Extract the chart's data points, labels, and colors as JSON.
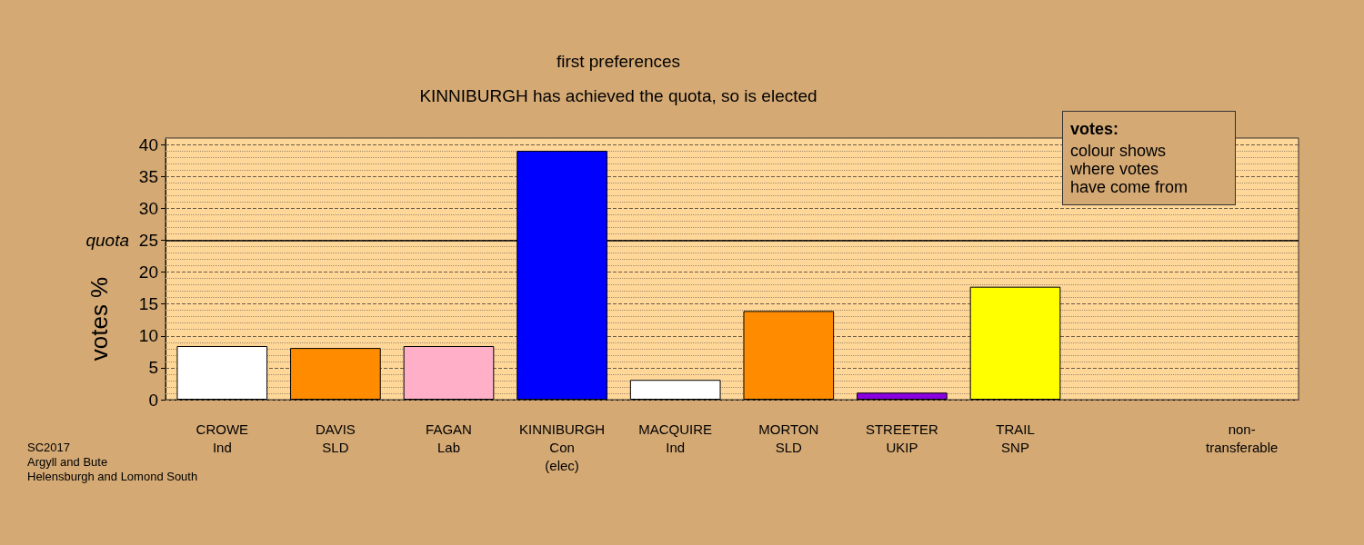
{
  "chart_data": {
    "type": "bar",
    "title": "first preferences",
    "subtitle": "KINNIBURGH has achieved the quota, so is elected",
    "ylabel": "votes %",
    "categories": [
      "CROWE\nInd",
      "DAVIS\nSLD",
      "FAGAN\nLab",
      "KINNIBURGH\nCon\n(elec)",
      "MACQUIRE\nInd",
      "MORTON\nSLD",
      "STREETER\nUKIP",
      "TRAIL\nSNP",
      null,
      "non-\ntransferable"
    ],
    "values": [
      8.4,
      8.1,
      8.4,
      39.0,
      3.1,
      13.9,
      1.1,
      17.7,
      null,
      null
    ],
    "colors": [
      "#ffffff",
      "#ff8c00",
      "#ffb0c8",
      "#0000ff",
      "#ffffff",
      "#ff8c00",
      "#8b00e0",
      "#ffff00",
      "#ffffff",
      "#ffffff"
    ],
    "ylim": [
      0,
      41
    ],
    "yticks": [
      0,
      {
        "value": 1,
        "label": null
      },
      {
        "value": 2,
        "label": null
      },
      {
        "value": 3,
        "label": null
      },
      {
        "value": 4,
        "label": null
      },
      5,
      {
        "value": 6,
        "label": null
      },
      {
        "value": 7,
        "label": null
      },
      {
        "value": 8,
        "label": null
      },
      {
        "value": 9,
        "label": null
      },
      10,
      {
        "value": 11,
        "label": null
      },
      {
        "value": 12,
        "label": null
      },
      {
        "value": 13,
        "label": null
      },
      {
        "value": 14,
        "label": null
      },
      15,
      {
        "value": 16,
        "label": null
      },
      {
        "value": 17,
        "label": null
      },
      {
        "value": 18,
        "label": null
      },
      {
        "value": 19,
        "label": null
      },
      20,
      {
        "value": 21,
        "label": null
      },
      {
        "value": 22,
        "label": null
      },
      {
        "value": 23,
        "label": null
      },
      {
        "value": 24,
        "label": null
      },
      25,
      {
        "value": 26,
        "label": null
      },
      {
        "value": 27,
        "label": null
      },
      {
        "value": 28,
        "label": null
      },
      {
        "value": 29,
        "label": null
      },
      30,
      {
        "value": 31,
        "label": null
      },
      {
        "value": 32,
        "label": null
      },
      {
        "value": 33,
        "label": null
      },
      {
        "value": 34,
        "label": null
      },
      35,
      {
        "value": 36,
        "label": null
      },
      {
        "value": 37,
        "label": null
      },
      {
        "value": 38,
        "label": null
      },
      {
        "value": 39,
        "label": null
      },
      40,
      {
        "value": 41,
        "label": null
      }
    ],
    "grid": "y",
    "ref_lines": [
      {
        "axis": "y",
        "value": 25,
        "label": "quota",
        "color": "#000000"
      }
    ],
    "annotations": [
      "votes:\ncolour shows\nwhere votes\nhave come from",
      "SC2017\nArgyll and Bute\nHelensburgh and Lomond South"
    ]
  }
}
